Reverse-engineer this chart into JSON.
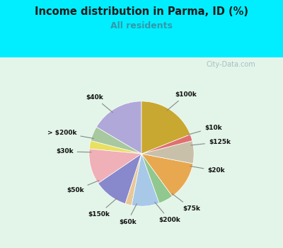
{
  "title": "Income distribution in Parma, ID (%)",
  "subtitle": "All residents",
  "title_color": "#1a1a1a",
  "subtitle_color": "#3399aa",
  "bg_outer": "#00eeff",
  "bg_inner": "#d8f0e0",
  "watermark": "City-Data.com",
  "slices": [
    {
      "label": "$100k",
      "value": 16.5,
      "color": "#b0a8d8"
    },
    {
      "label": "$10k",
      "value": 4.5,
      "color": "#a8c8a0"
    },
    {
      "label": "$125k",
      "value": 2.5,
      "color": "#e8e060"
    },
    {
      "label": "$20k",
      "value": 11.0,
      "color": "#f0b0b8"
    },
    {
      "label": "$75k",
      "value": 10.5,
      "color": "#8888cc"
    },
    {
      "label": "$200k",
      "value": 2.0,
      "color": "#e8c898"
    },
    {
      "label": "$60k",
      "value": 8.5,
      "color": "#a8c8e8"
    },
    {
      "label": "$150k",
      "value": 4.5,
      "color": "#90c890"
    },
    {
      "label": "$50k",
      "value": 12.0,
      "color": "#e8a850"
    },
    {
      "label": "$30k",
      "value": 7.0,
      "color": "#c8c0a8"
    },
    {
      "label": "> $200k",
      "value": 2.0,
      "color": "#e07070"
    },
    {
      "label": "$40k",
      "value": 19.0,
      "color": "#c8a830"
    }
  ],
  "start_angle": 90,
  "figsize": [
    4.0,
    3.5
  ],
  "dpi": 100
}
